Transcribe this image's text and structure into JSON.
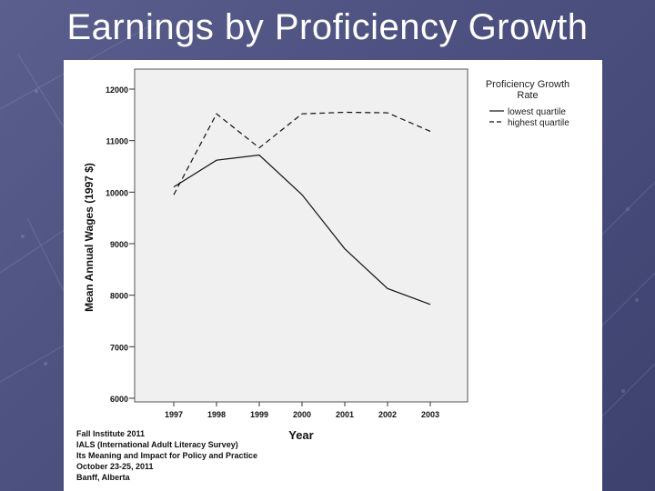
{
  "slide": {
    "title": "Earnings by Proficiency Growth",
    "background_color": "#4f5381"
  },
  "footer": {
    "lines": [
      "Fall Institute 2011",
      "IALS (International Adult Literacy Survey)",
      "Its Meaning and Impact for Policy and Practice",
      "October 23-25, 2011",
      "Banff, Alberta"
    ]
  },
  "chart_data": {
    "type": "line",
    "title": "",
    "xlabel": "Year",
    "ylabel": "Mean Annual Wages (1997 $)",
    "x": [
      "1997",
      "1998",
      "1999",
      "2000",
      "2001",
      "2002",
      "2003"
    ],
    "ylim": [
      6000,
      12000
    ],
    "yticks": [
      6000,
      7000,
      8000,
      9000,
      10000,
      11000,
      12000
    ],
    "grid": false,
    "plot_background": "#f0f0f0",
    "legend": {
      "title": "Proficiency Growth Rate",
      "placement": "top-right"
    },
    "series": [
      {
        "name": "lowest quartile",
        "style": "solid",
        "values": [
          10100,
          10620,
          10720,
          9950,
          8900,
          8130,
          7820
        ]
      },
      {
        "name": "highest quartile",
        "style": "dashed",
        "values": [
          9950,
          11520,
          10860,
          11520,
          11550,
          11540,
          11180
        ]
      }
    ]
  }
}
